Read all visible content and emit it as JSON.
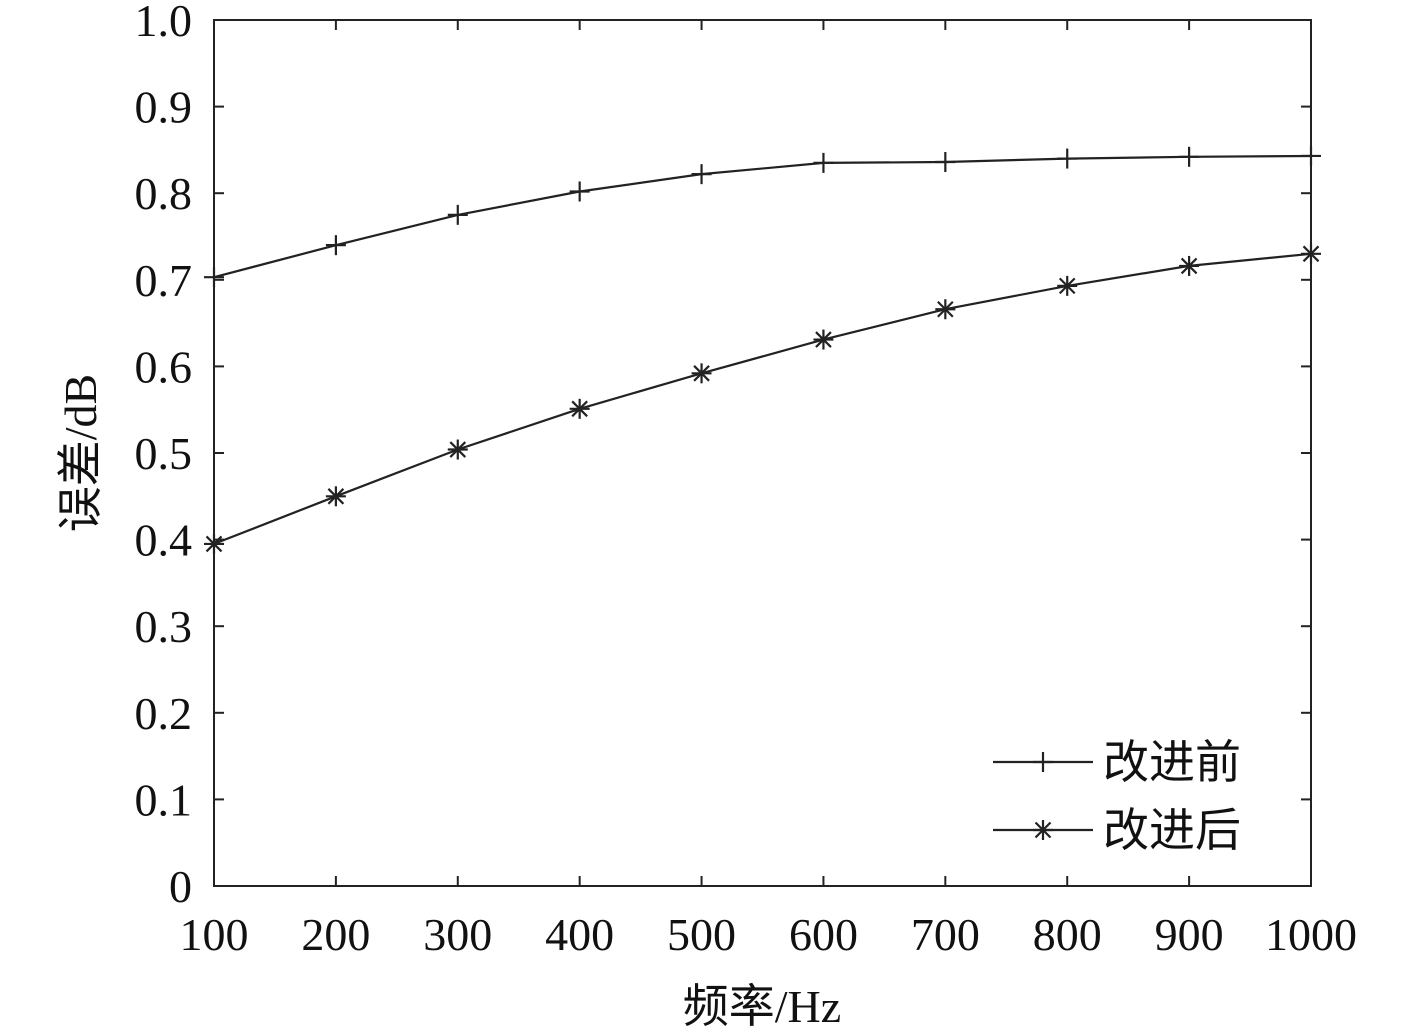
{
  "chart_data": {
    "type": "line",
    "title": "",
    "xlabel": "频率/Hz",
    "ylabel": "误差/dB",
    "x": [
      100,
      200,
      300,
      400,
      500,
      600,
      700,
      800,
      900,
      1000
    ],
    "xlim": [
      100,
      1000
    ],
    "ylim": [
      0,
      1.0
    ],
    "xticks": [
      "100",
      "200",
      "300",
      "400",
      "500",
      "600",
      "700",
      "800",
      "900",
      "1000"
    ],
    "yticks": [
      "0",
      "0.1",
      "0.2",
      "0.3",
      "0.4",
      "0.5",
      "0.6",
      "0.7",
      "0.8",
      "0.9",
      "1.0"
    ],
    "grid": false,
    "legend_position": "bottom-right",
    "series": [
      {
        "name": "改进前",
        "marker": "plus",
        "color": "#222222",
        "values": [
          0.703,
          0.74,
          0.775,
          0.802,
          0.822,
          0.835,
          0.836,
          0.84,
          0.842,
          0.843
        ]
      },
      {
        "name": "改进后",
        "marker": "asterisk",
        "color": "#222222",
        "values": [
          0.395,
          0.45,
          0.504,
          0.551,
          0.592,
          0.631,
          0.666,
          0.693,
          0.716,
          0.73
        ]
      }
    ]
  }
}
